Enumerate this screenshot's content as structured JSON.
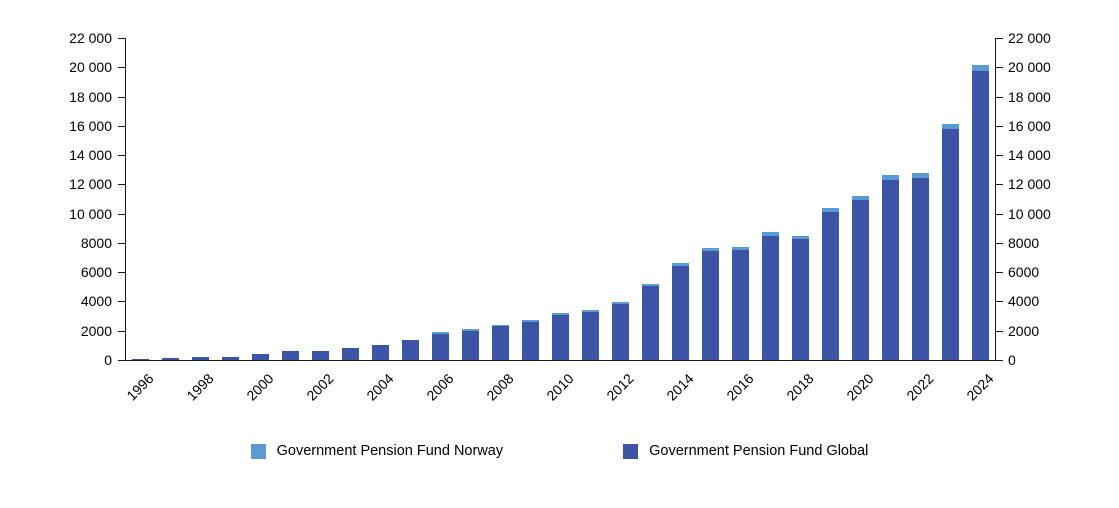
{
  "chart_data": {
    "type": "bar",
    "stacked": true,
    "title": "",
    "xlabel": "",
    "ylabel": "",
    "grid": false,
    "legend_position": "bottom",
    "ylim": [
      0,
      22000
    ],
    "ytick_step": 2000,
    "ytick_labels": [
      "0",
      "2000",
      "4000",
      "6000",
      "8000",
      "10 000",
      "12 000",
      "14 000",
      "16 000",
      "18 000",
      "20 000",
      "22 000"
    ],
    "xtick_every": 2,
    "categories": [
      1996,
      1997,
      1998,
      1999,
      2000,
      2001,
      2002,
      2003,
      2004,
      2005,
      2006,
      2007,
      2008,
      2009,
      2010,
      2011,
      2012,
      2013,
      2014,
      2015,
      2016,
      2017,
      2018,
      2019,
      2020,
      2021,
      2022,
      2023,
      2024
    ],
    "series": [
      {
        "name": "Government Pension Fund Norway",
        "color": "#5B9BD5",
        "values": [
          0,
          0,
          0,
          0,
          0,
          0,
          0,
          0,
          0,
          0,
          107,
          117,
          88,
          117,
          135,
          129,
          145,
          168,
          186,
          198,
          212,
          240,
          239,
          269,
          292,
          333,
          318,
          353,
          382
        ]
      },
      {
        "name": "Government Pension Fund Global",
        "color": "#3B54A6",
        "values": [
          48,
          113,
          172,
          222,
          386,
          619,
          609,
          845,
          1016,
          1399,
          1784,
          2019,
          2275,
          2640,
          3077,
          3312,
          3816,
          5038,
          6431,
          7471,
          7510,
          8488,
          8256,
          10088,
          10914,
          12340,
          12429,
          15757,
          19742
        ]
      }
    ]
  }
}
